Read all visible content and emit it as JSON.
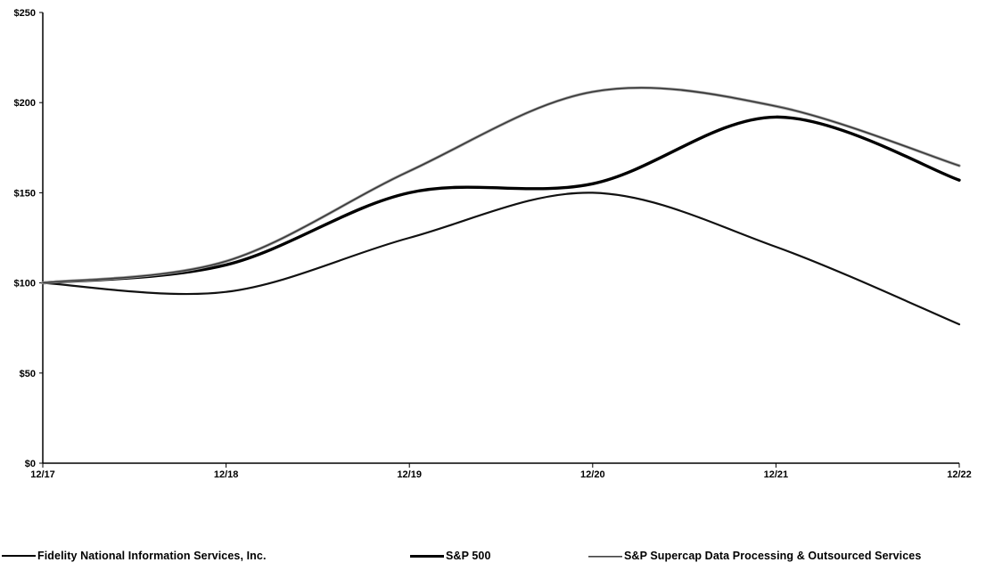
{
  "chart_data": {
    "type": "line",
    "title": "",
    "xlabel": "",
    "ylabel": "",
    "categories": [
      "12/17",
      "12/18",
      "12/19",
      "12/20",
      "12/21",
      "12/22"
    ],
    "y_ticks": [
      "$0",
      "$50",
      "$100",
      "$150",
      "$200",
      "$250"
    ],
    "ylim": [
      0,
      250
    ],
    "grid": false,
    "legend_position": "bottom",
    "series": [
      {
        "name": "Fidelity National Information Services, Inc.",
        "values": [
          100,
          95,
          125,
          150,
          120,
          77
        ],
        "color": "#111111",
        "style": "medium"
      },
      {
        "name": "S&P 500",
        "values": [
          100,
          110,
          150,
          155,
          192,
          157
        ],
        "color": "#000000",
        "style": "thick"
      },
      {
        "name": "S&P Supercap Data Processing & Outsourced Services",
        "values": [
          100,
          112,
          162,
          206,
          198,
          165
        ],
        "color": "#333333",
        "style": "thin-double"
      }
    ]
  },
  "legend": [
    {
      "label": "Fidelity National Information Services, Inc."
    },
    {
      "label": "S&P 500"
    },
    {
      "label": "S&P Supercap Data Processing & Outsourced Services"
    }
  ]
}
